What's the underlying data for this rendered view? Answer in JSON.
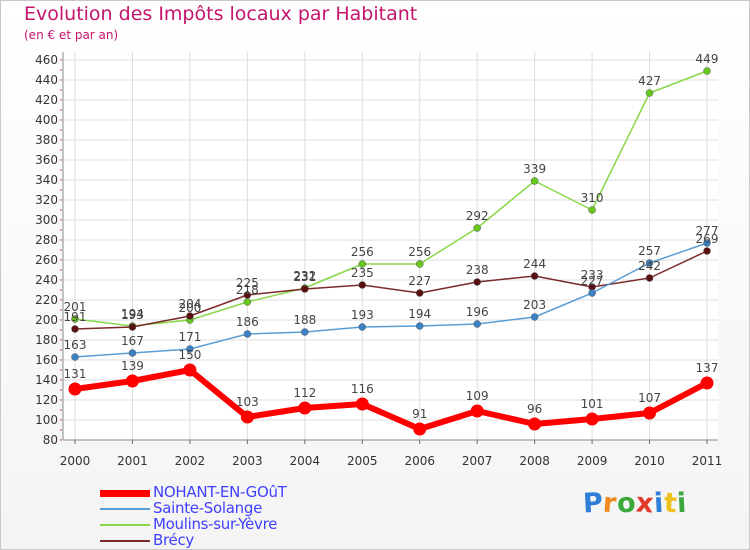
{
  "header": {
    "title": "Evolution des Impôts locaux par Habitant",
    "subtitle": "(en € et par an)"
  },
  "colors": {
    "title": "#c4146d",
    "legend_text": "#4040ff"
  },
  "logo": {
    "letters": [
      "P",
      "r",
      "o",
      "x",
      "i",
      "t",
      "i"
    ]
  },
  "chart_data": {
    "type": "line",
    "title": "Evolution des Impôts locaux par Habitant",
    "subtitle": "(en € et par an)",
    "xlabel": "",
    "ylabel": "",
    "ylim": [
      80,
      460
    ],
    "yticks": [
      80,
      100,
      120,
      140,
      160,
      180,
      200,
      220,
      240,
      260,
      280,
      300,
      320,
      340,
      360,
      380,
      400,
      420,
      440,
      460
    ],
    "grid": true,
    "legend_position": "bottom-left",
    "x": [
      "2000",
      "2001",
      "2002",
      "2003",
      "2004",
      "2005",
      "2006",
      "2007",
      "2008",
      "2009",
      "2010",
      "2011"
    ],
    "series": [
      {
        "name": "Moulins-sur-Yèvre",
        "color": "#88d84a",
        "dot": "#66c81c",
        "width": 1.5,
        "r": 3.5,
        "values": [
          201,
          194,
          200,
          218,
          232,
          256,
          256,
          292,
          339,
          310,
          427,
          449
        ]
      },
      {
        "name": "Brécy",
        "color": "#7a2a2a",
        "dot": "#5a1010",
        "width": 1.5,
        "r": 3.5,
        "values": [
          191,
          193,
          204,
          225,
          231,
          235,
          227,
          238,
          244,
          233,
          242,
          269
        ]
      },
      {
        "name": "Sainte-Solange",
        "color": "#5b9ed6",
        "dot": "#3b82c4",
        "width": 1.5,
        "r": 3.5,
        "values": [
          163,
          167,
          171,
          186,
          188,
          193,
          194,
          196,
          203,
          227,
          257,
          277
        ]
      },
      {
        "name": "NOHANT-EN-GOûT",
        "color": "#ff0000",
        "dot": "#ff0000",
        "width": 6,
        "r": 6.5,
        "values": [
          131,
          139,
          150,
          103,
          112,
          116,
          91,
          109,
          96,
          101,
          107,
          137
        ]
      }
    ],
    "legend_order": [
      "NOHANT-EN-GOûT",
      "Sainte-Solange",
      "Moulins-sur-Yèvre",
      "Brécy"
    ]
  }
}
